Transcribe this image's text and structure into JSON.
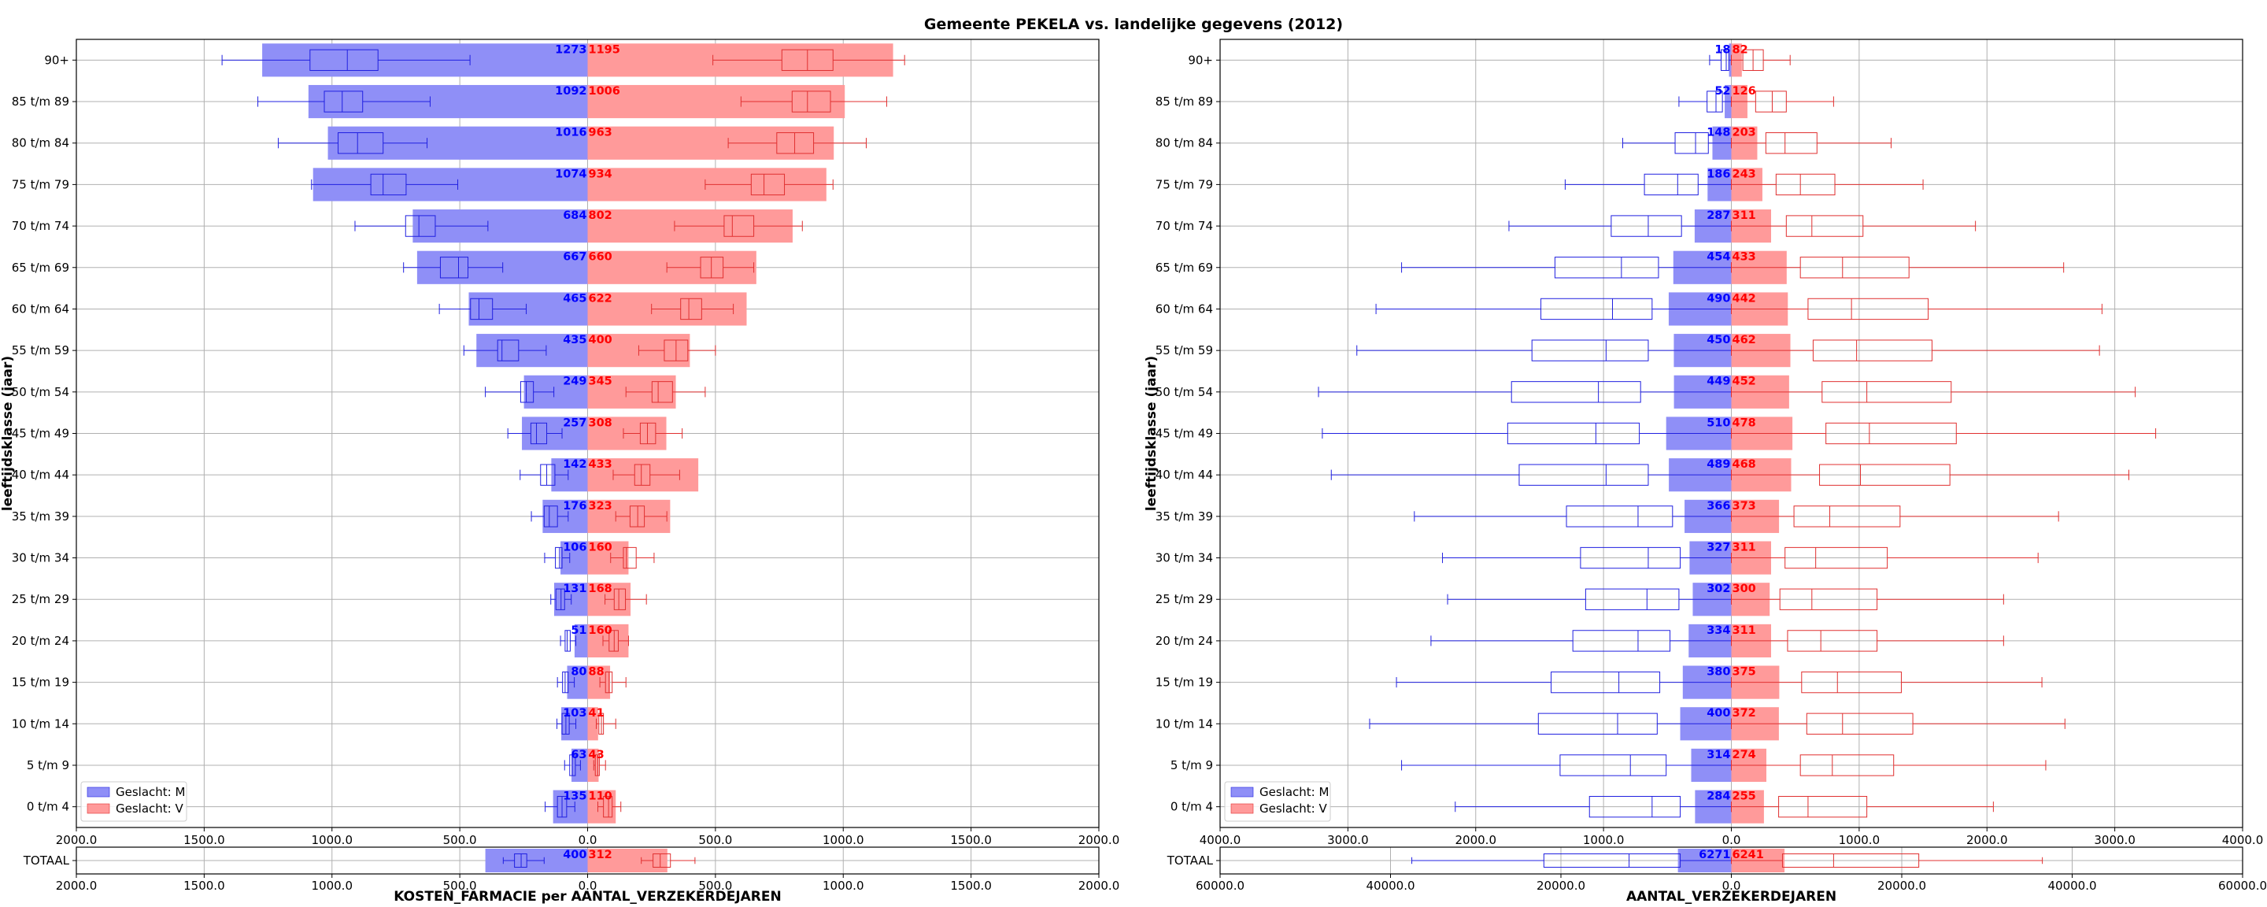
{
  "title": "Gemeente PEKELA vs. landelijke gegevens (2012)",
  "colors": {
    "male_fill": "#8f8ff7",
    "female_fill": "#ff9a9a",
    "male_box": "#2020e0",
    "female_box": "#e03030",
    "male_text": "#0000ff",
    "female_text": "#ff0000",
    "grid": "#b0b0b0"
  },
  "legend": {
    "male": "Geslacht: M",
    "female": "Geslacht: V",
    "location": "lower-left"
  },
  "chart_data": [
    {
      "type": "population-pyramid-bar-box",
      "xlabel": "KOSTEN_FARMACIE per AANTAL_VERZEKERDEJAREN",
      "ylabel": "leeftijdsklasse (jaar)",
      "grid": true,
      "xlim": [
        -2000,
        2000
      ],
      "xticks": [
        "2000.0",
        "1500.0",
        "1000.0",
        "500.0",
        "0.0",
        "500.0",
        "1000.0",
        "1500.0",
        "2000.0"
      ],
      "total_xlim": [
        -2000,
        2000
      ],
      "total_xticks": [
        "2000.0",
        "1500.0",
        "1000.0",
        "500.0",
        "0.0",
        "500.0",
        "1000.0",
        "1500.0",
        "2000.0"
      ],
      "categories": [
        "0 t/m  4",
        "5 t/m  9",
        "10 t/m 14",
        "15 t/m 19",
        "20 t/m 24",
        "25 t/m 29",
        "30 t/m 34",
        "35 t/m 39",
        "40 t/m 44",
        "45 t/m 49",
        "50 t/m 54",
        "55 t/m 59",
        "60 t/m 64",
        "65 t/m 69",
        "70 t/m 74",
        "75 t/m 79",
        "80 t/m 84",
        "85 t/m 89",
        "90+"
      ],
      "series": [
        {
          "name": "Geslacht: M",
          "values": [
            135,
            63,
            103,
            80,
            51,
            131,
            106,
            176,
            142,
            257,
            249,
            435,
            465,
            667,
            684,
            1074,
            1016,
            1092,
            1273
          ]
        },
        {
          "name": "Geslacht: V",
          "values": [
            110,
            43,
            41,
            88,
            160,
            168,
            160,
            323,
            433,
            308,
            345,
            400,
            622,
            660,
            802,
            934,
            963,
            1006,
            1195
          ]
        }
      ],
      "boxes_male": [
        [
          166,
          118,
          100,
          82,
          50
        ],
        [
          90,
          70,
          60,
          48,
          28
        ],
        [
          120,
          100,
          85,
          72,
          46
        ],
        [
          118,
          98,
          88,
          76,
          52
        ],
        [
          106,
          88,
          80,
          68,
          46
        ],
        [
          144,
          124,
          104,
          90,
          64
        ],
        [
          168,
          126,
          110,
          100,
          70
        ],
        [
          220,
          170,
          150,
          118,
          76
        ],
        [
          264,
          184,
          160,
          128,
          76
        ],
        [
          312,
          222,
          200,
          160,
          100
        ],
        [
          400,
          262,
          240,
          212,
          132
        ],
        [
          484,
          352,
          335,
          270,
          162
        ],
        [
          580,
          458,
          425,
          372,
          240
        ],
        [
          720,
          576,
          505,
          468,
          332
        ],
        [
          910,
          712,
          660,
          596,
          390
        ],
        [
          1080,
          848,
          800,
          710,
          508
        ],
        [
          1210,
          976,
          900,
          800,
          628
        ],
        [
          1290,
          1030,
          960,
          880,
          616
        ],
        [
          1430,
          1086,
          940,
          820,
          460
        ]
      ],
      "boxes_female": [
        [
          40,
          62,
          82,
          96,
          130
        ],
        [
          24,
          30,
          40,
          46,
          70
        ],
        [
          34,
          44,
          54,
          62,
          110
        ],
        [
          48,
          70,
          84,
          96,
          150
        ],
        [
          60,
          84,
          104,
          120,
          160
        ],
        [
          68,
          104,
          122,
          148,
          230
        ],
        [
          90,
          140,
          152,
          190,
          260
        ],
        [
          110,
          166,
          196,
          222,
          310
        ],
        [
          100,
          184,
          210,
          244,
          360
        ],
        [
          140,
          206,
          234,
          266,
          370
        ],
        [
          150,
          252,
          276,
          332,
          460
        ],
        [
          200,
          300,
          346,
          392,
          500
        ],
        [
          250,
          364,
          396,
          446,
          570
        ],
        [
          310,
          442,
          484,
          530,
          650
        ],
        [
          340,
          534,
          566,
          650,
          840
        ],
        [
          460,
          640,
          690,
          770,
          960
        ],
        [
          550,
          740,
          810,
          884,
          1090
        ],
        [
          600,
          800,
          860,
          950,
          1170
        ],
        [
          490,
          760,
          860,
          960,
          1240
        ]
      ],
      "total": {
        "male": 400,
        "female": 312,
        "box_male": [
          330,
          286,
          260,
          238,
          170
        ],
        "box_female": [
          210,
          256,
          284,
          324,
          420
        ]
      }
    },
    {
      "type": "population-pyramid-bar-box",
      "xlabel": "AANTAL_VERZEKERDEJAREN",
      "ylabel": "leeftijdsklasse (jaar)",
      "grid": true,
      "xlim": [
        -4000,
        4000
      ],
      "xticks": [
        "4000.0",
        "3000.0",
        "2000.0",
        "1000.0",
        "0.0",
        "1000.0",
        "2000.0",
        "3000.0",
        "4000.0"
      ],
      "total_xlim": [
        -60000,
        60000
      ],
      "total_xticks": [
        "60000.0",
        "40000.0",
        "20000.0",
        "0.0",
        "20000.0",
        "40000.0",
        "60000.0"
      ],
      "categories": [
        "0 t/m  4",
        "5 t/m  9",
        "10 t/m 14",
        "15 t/m 19",
        "20 t/m 24",
        "25 t/m 29",
        "30 t/m 34",
        "35 t/m 39",
        "40 t/m 44",
        "45 t/m 49",
        "50 t/m 54",
        "55 t/m 59",
        "60 t/m 64",
        "65 t/m 69",
        "70 t/m 74",
        "75 t/m 79",
        "80 t/m 84",
        "85 t/m 89",
        "90+"
      ],
      "series": [
        {
          "name": "Geslacht: M",
          "values": [
            284,
            314,
            400,
            380,
            334,
            302,
            327,
            366,
            489,
            510,
            449,
            450,
            490,
            454,
            287,
            186,
            148,
            52,
            18
          ]
        },
        {
          "name": "Geslacht: V",
          "values": [
            255,
            274,
            372,
            375,
            311,
            300,
            311,
            373,
            468,
            478,
            452,
            462,
            442,
            433,
            311,
            243,
            203,
            126,
            82
          ]
        }
      ],
      "boxes_male": [
        [
          2160,
          1110,
          620,
          400,
          0
        ],
        [
          2580,
          1340,
          790,
          510,
          0
        ],
        [
          2830,
          1510,
          890,
          580,
          0
        ],
        [
          2620,
          1410,
          880,
          560,
          0
        ],
        [
          2350,
          1240,
          730,
          480,
          0
        ],
        [
          2220,
          1140,
          660,
          410,
          0
        ],
        [
          2260,
          1180,
          650,
          400,
          0
        ],
        [
          2480,
          1290,
          730,
          460,
          0
        ],
        [
          3130,
          1660,
          980,
          650,
          0
        ],
        [
          3200,
          1750,
          1060,
          720,
          0
        ],
        [
          3230,
          1720,
          1040,
          710,
          0
        ],
        [
          2930,
          1560,
          980,
          650,
          0
        ],
        [
          2780,
          1490,
          930,
          620,
          0
        ],
        [
          2580,
          1380,
          860,
          570,
          0
        ],
        [
          1740,
          940,
          650,
          390,
          0
        ],
        [
          1300,
          680,
          420,
          260,
          0
        ],
        [
          850,
          440,
          280,
          180,
          0
        ],
        [
          410,
          190,
          120,
          70,
          0
        ],
        [
          170,
          80,
          40,
          20,
          0
        ]
      ],
      "boxes_female": [
        [
          0,
          370,
          600,
          1060,
          2050
        ],
        [
          0,
          540,
          790,
          1270,
          2460
        ],
        [
          0,
          590,
          870,
          1420,
          2610
        ],
        [
          0,
          550,
          830,
          1330,
          2430
        ],
        [
          0,
          440,
          700,
          1140,
          2130
        ],
        [
          0,
          380,
          630,
          1140,
          2130
        ],
        [
          0,
          420,
          660,
          1220,
          2400
        ],
        [
          0,
          490,
          770,
          1320,
          2560
        ],
        [
          0,
          690,
          1010,
          1710,
          3110
        ],
        [
          0,
          740,
          1080,
          1760,
          3320
        ],
        [
          0,
          710,
          1060,
          1720,
          3160
        ],
        [
          0,
          640,
          980,
          1570,
          2880
        ],
        [
          0,
          600,
          940,
          1540,
          2900
        ],
        [
          0,
          540,
          870,
          1390,
          2600
        ],
        [
          0,
          430,
          630,
          1030,
          1910
        ],
        [
          0,
          350,
          540,
          810,
          1500
        ],
        [
          0,
          270,
          420,
          670,
          1250
        ],
        [
          0,
          190,
          320,
          430,
          800
        ],
        [
          0,
          90,
          170,
          250,
          460
        ]
      ],
      "total": {
        "male": 6271,
        "female": 6241,
        "box_male": [
          37500,
          22000,
          12000,
          6000,
          0
        ],
        "box_female": [
          0,
          6000,
          12000,
          22000,
          36500
        ]
      }
    }
  ]
}
